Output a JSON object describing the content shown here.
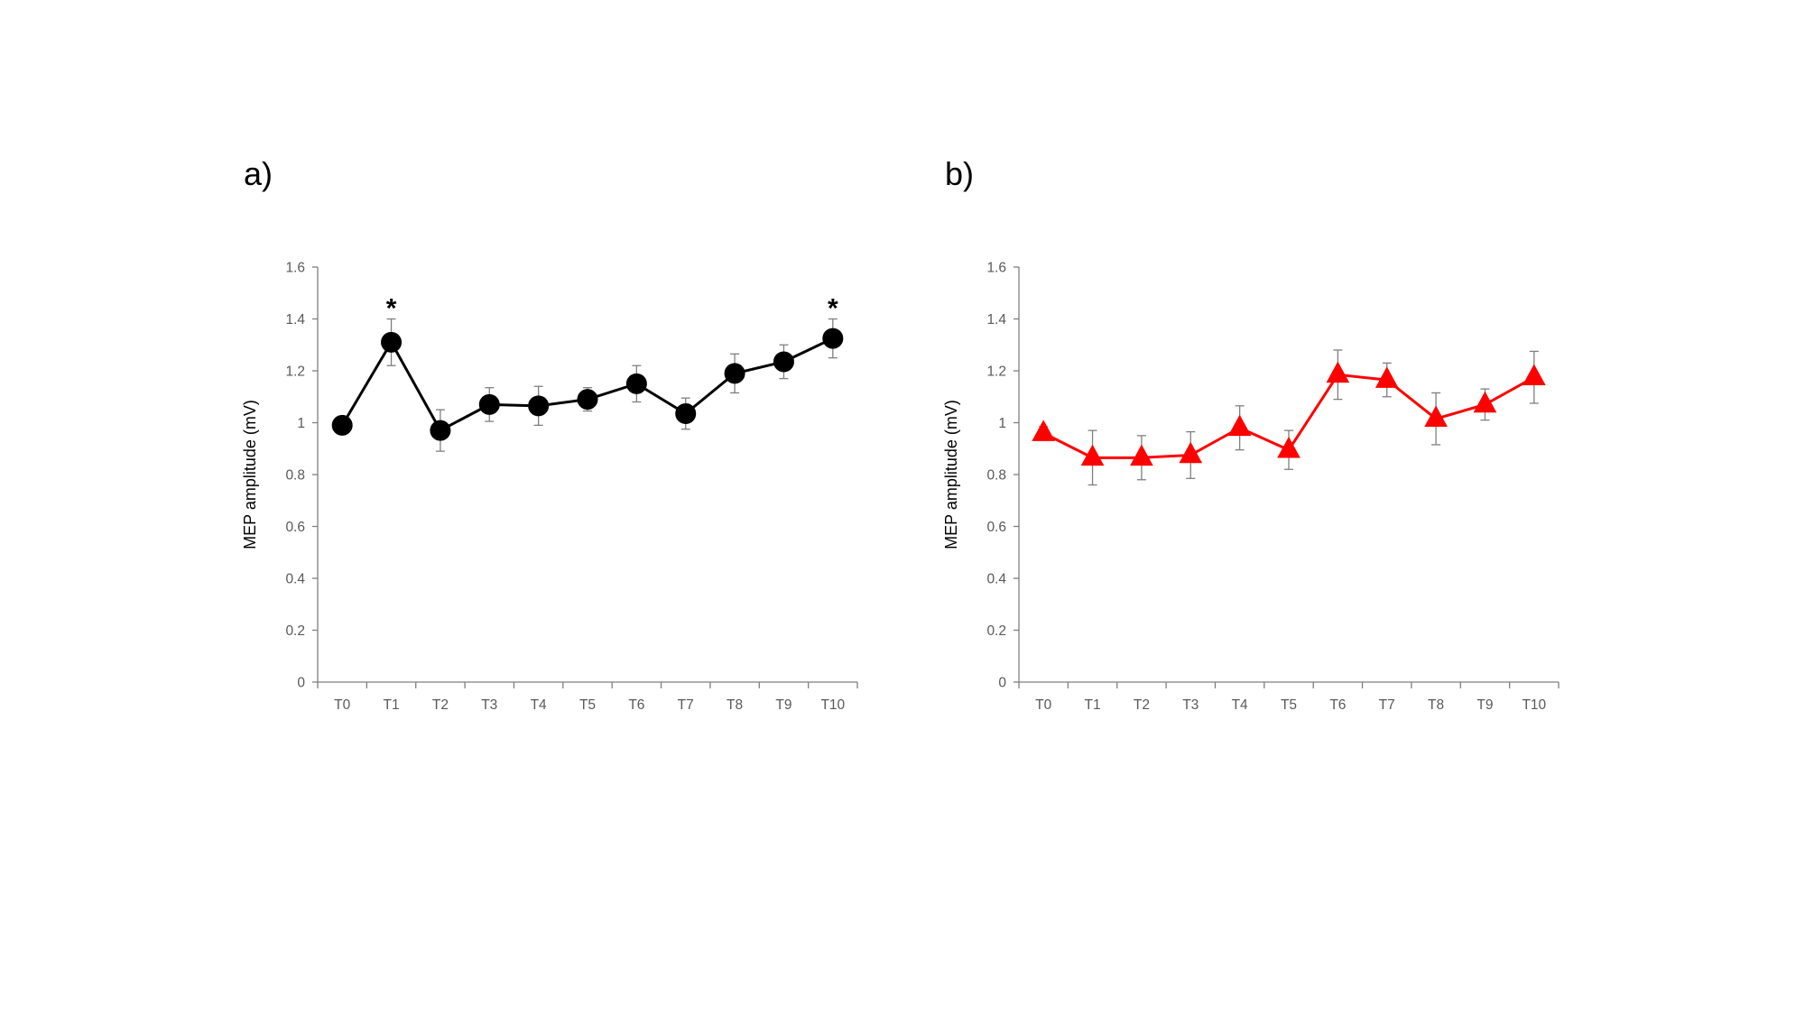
{
  "chart_data": [
    {
      "type": "line",
      "panel_label": "a)",
      "categories": [
        "T0",
        "T1",
        "T2",
        "T3",
        "T4",
        "T5",
        "T6",
        "T7",
        "T8",
        "T9",
        "T10"
      ],
      "series": [
        {
          "values": [
            0.99,
            1.31,
            0.97,
            1.07,
            1.065,
            1.09,
            1.15,
            1.035,
            1.19,
            1.235,
            1.325
          ],
          "errors": [
            0.02,
            0.09,
            0.08,
            0.065,
            0.075,
            0.045,
            0.07,
            0.06,
            0.075,
            0.065,
            0.075
          ],
          "color": "#000000",
          "marker": "circle"
        }
      ],
      "annotations": [
        {
          "category": "T1",
          "text": "*"
        },
        {
          "category": "T10",
          "text": "*"
        }
      ],
      "ylabel": "MEP amplitude (mV)",
      "ylim": [
        0,
        1.6
      ],
      "yticks": [
        "0",
        "0.2",
        "0.4",
        "0.6",
        "0.8",
        "1",
        "1.2",
        "1.4",
        "1.6"
      ],
      "grid": false
    },
    {
      "type": "line",
      "panel_label": "b)",
      "categories": [
        "T0",
        "T1",
        "T2",
        "T3",
        "T4",
        "T5",
        "T6",
        "T7",
        "T8",
        "T9",
        "T10"
      ],
      "series": [
        {
          "values": [
            0.96,
            0.865,
            0.865,
            0.875,
            0.98,
            0.895,
            1.185,
            1.165,
            1.015,
            1.07,
            1.175
          ],
          "errors": [
            0.025,
            0.105,
            0.085,
            0.09,
            0.085,
            0.075,
            0.095,
            0.065,
            0.1,
            0.06,
            0.1
          ],
          "color": "#ff0000",
          "marker": "triangle"
        }
      ],
      "annotations": [],
      "ylabel": "MEP amplitude (mV)",
      "ylim": [
        0,
        1.6
      ],
      "yticks": [
        "0",
        "0.2",
        "0.4",
        "0.6",
        "0.8",
        "1",
        "1.2",
        "1.4",
        "1.6"
      ],
      "grid": false
    }
  ]
}
